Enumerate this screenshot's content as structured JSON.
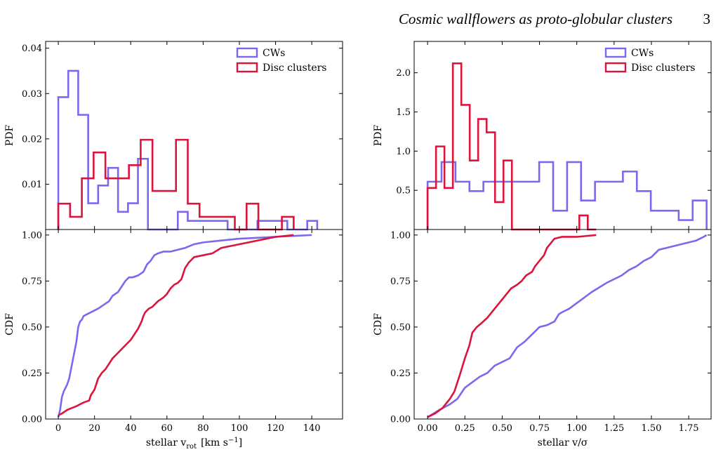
{
  "header": {
    "title": "Cosmic wallflowers as proto-globular clusters",
    "page_number": "3"
  },
  "colors": {
    "cw": "#7b68ee",
    "disc": "#dc143c"
  },
  "chart_data": [
    {
      "type": "histogram",
      "panel": "top-left",
      "ylabel": "PDF",
      "xlim": [
        -7,
        157
      ],
      "ylim": [
        0,
        0.0415
      ],
      "yticks": [
        0.01,
        0.02,
        0.03,
        0.04
      ],
      "ytick_labels": [
        "0.01",
        "0.02",
        "0.03",
        "0.04"
      ],
      "xticks": [
        0,
        20,
        40,
        60,
        80,
        100,
        120,
        140
      ],
      "legend": {
        "placement": "upper right",
        "entries": [
          "CWs",
          "Disc clusters"
        ]
      },
      "series": [
        {
          "name": "CWs",
          "color": "#7b68ee",
          "edges": [
            0,
            5.5,
            11,
            16.5,
            22,
            27.5,
            33,
            38.5,
            44,
            49.5,
            55,
            60.5,
            66,
            71.5,
            77,
            82.5,
            88,
            93.5,
            99,
            104.5,
            110,
            115.5,
            121,
            126.5,
            132,
            137.5,
            143
          ],
          "values": [
            0.0292,
            0.035,
            0.0253,
            0.0058,
            0.0097,
            0.0136,
            0.0039,
            0.0058,
            0.0156,
            0,
            0,
            0,
            0.0039,
            0.0019,
            0.0019,
            0.0019,
            0.0019,
            0,
            0,
            0,
            0.0019,
            0.0019,
            0.0019,
            0,
            0,
            0.0019
          ]
        },
        {
          "name": "Disc clusters",
          "color": "#dc143c",
          "edges": [
            0,
            6.5,
            13,
            19.5,
            26,
            32.5,
            39,
            45.5,
            52,
            58.5,
            65,
            71.5,
            78,
            84.5,
            91,
            97.5,
            104,
            110.5,
            117,
            123.5,
            130
          ],
          "values": [
            0.0057,
            0.0028,
            0.0113,
            0.017,
            0.0113,
            0.0113,
            0.0142,
            0.0198,
            0.0085,
            0.0085,
            0.0198,
            0.0057,
            0.0028,
            0.0028,
            0.0028,
            0,
            0.0057,
            0,
            0,
            0.0028
          ]
        }
      ]
    },
    {
      "type": "histogram",
      "panel": "top-right",
      "ylabel": "PDF",
      "xlim": [
        -0.09,
        1.9
      ],
      "ylim": [
        0,
        2.4
      ],
      "yticks": [
        0.5,
        1.0,
        1.5,
        2.0
      ],
      "ytick_labels": [
        "0.5",
        "1.0",
        "1.5",
        "2.0"
      ],
      "xticks": [
        0.0,
        0.25,
        0.5,
        0.75,
        1.0,
        1.25,
        1.5,
        1.75
      ],
      "legend": {
        "placement": "upper right",
        "entries": [
          "CWs",
          "Disc clusters"
        ]
      },
      "series": [
        {
          "name": "CWs",
          "color": "#7b68ee",
          "edges": [
            0,
            0.0935,
            0.187,
            0.2805,
            0.374,
            0.4675,
            0.561,
            0.6545,
            0.748,
            0.8415,
            0.935,
            1.0285,
            1.122,
            1.2155,
            1.309,
            1.4025,
            1.496,
            1.5895,
            1.683,
            1.7765,
            1.87
          ],
          "values": [
            0.61,
            0.86,
            0.61,
            0.49,
            0.61,
            0.61,
            0.61,
            0.61,
            0.86,
            0.24,
            0.86,
            0.37,
            0.61,
            0.61,
            0.74,
            0.49,
            0.24,
            0.24,
            0.12,
            0.37
          ]
        },
        {
          "name": "Disc clusters",
          "color": "#dc143c",
          "edges": [
            0,
            0.0565,
            0.113,
            0.1695,
            0.226,
            0.2825,
            0.339,
            0.3955,
            0.452,
            0.5085,
            0.565,
            0.6215,
            0.678,
            0.7345,
            0.791,
            0.8475,
            0.904,
            0.9605,
            1.017,
            1.0735,
            1.13
          ],
          "values": [
            0.53,
            1.06,
            0.53,
            2.12,
            1.59,
            0.88,
            1.41,
            1.24,
            0.35,
            0.88,
            0,
            0,
            0,
            0,
            0,
            0,
            0,
            0,
            0.18,
            0
          ]
        }
      ]
    },
    {
      "type": "line",
      "panel": "bottom-left",
      "xlabel": "stellar v",
      "xlabel_sub": "rot",
      "xlabel_unit": "[km s",
      "xlabel_exp": "−1",
      "xlabel_close": "]",
      "ylabel": "CDF",
      "xlim": [
        -7,
        157
      ],
      "ylim": [
        0,
        1.03
      ],
      "xticks": [
        0,
        20,
        40,
        60,
        80,
        100,
        120,
        140
      ],
      "xtick_labels": [
        "0",
        "20",
        "40",
        "60",
        "80",
        "100",
        "120",
        "140"
      ],
      "yticks": [
        0,
        0.25,
        0.5,
        0.75,
        1.0
      ],
      "ytick_labels": [
        "0.00",
        "0.25",
        "0.50",
        "0.75",
        "1.00"
      ],
      "series": [
        {
          "name": "CWs",
          "color": "#7b68ee",
          "x": [
            0,
            1,
            2,
            3,
            4,
            5,
            6,
            7,
            8,
            9,
            10,
            11,
            12,
            13,
            14,
            16,
            18,
            20,
            22,
            25,
            28,
            30,
            33,
            35,
            37,
            39,
            41,
            44,
            47,
            49,
            51,
            53,
            55,
            58,
            62,
            66,
            70,
            75,
            80,
            90,
            100,
            120,
            140
          ],
          "y": [
            0.01,
            0.05,
            0.12,
            0.15,
            0.17,
            0.19,
            0.22,
            0.27,
            0.32,
            0.37,
            0.42,
            0.5,
            0.53,
            0.54,
            0.56,
            0.57,
            0.58,
            0.59,
            0.6,
            0.62,
            0.64,
            0.67,
            0.69,
            0.72,
            0.75,
            0.77,
            0.77,
            0.78,
            0.8,
            0.84,
            0.86,
            0.89,
            0.9,
            0.91,
            0.91,
            0.92,
            0.93,
            0.95,
            0.96,
            0.97,
            0.98,
            0.99,
            1.0
          ]
        },
        {
          "name": "Disc clusters",
          "color": "#dc143c",
          "x": [
            0,
            2,
            5,
            10,
            14,
            17,
            18,
            20,
            22,
            24,
            26,
            28,
            30,
            32,
            34,
            36,
            38,
            40,
            42,
            44,
            46,
            47,
            48,
            50,
            52,
            55,
            58,
            60,
            62,
            64,
            66,
            68,
            69,
            70,
            72,
            75,
            80,
            85,
            90,
            100,
            110,
            120,
            130
          ],
          "y": [
            0.02,
            0.03,
            0.05,
            0.07,
            0.09,
            0.1,
            0.13,
            0.16,
            0.22,
            0.25,
            0.27,
            0.3,
            0.33,
            0.35,
            0.37,
            0.39,
            0.41,
            0.43,
            0.46,
            0.49,
            0.53,
            0.56,
            0.58,
            0.6,
            0.61,
            0.64,
            0.66,
            0.68,
            0.71,
            0.73,
            0.74,
            0.76,
            0.79,
            0.82,
            0.85,
            0.88,
            0.89,
            0.9,
            0.93,
            0.95,
            0.97,
            0.99,
            1.0
          ]
        }
      ]
    },
    {
      "type": "line",
      "panel": "bottom-right",
      "xlabel": "stellar v/σ",
      "ylabel": "CDF",
      "xlim": [
        -0.09,
        1.9
      ],
      "ylim": [
        0,
        1.03
      ],
      "xticks": [
        0.0,
        0.25,
        0.5,
        0.75,
        1.0,
        1.25,
        1.5,
        1.75
      ],
      "xtick_labels": [
        "0.00",
        "0.25",
        "0.50",
        "0.75",
        "1.00",
        "1.25",
        "1.50",
        "1.75"
      ],
      "yticks": [
        0,
        0.25,
        0.5,
        0.75,
        1.0
      ],
      "ytick_labels": [
        "0.00",
        "0.25",
        "0.50",
        "0.75",
        "1.00"
      ],
      "series": [
        {
          "name": "CWs",
          "color": "#7b68ee",
          "x": [
            0,
            0.08,
            0.15,
            0.2,
            0.25,
            0.3,
            0.35,
            0.4,
            0.45,
            0.5,
            0.55,
            0.6,
            0.65,
            0.7,
            0.75,
            0.8,
            0.85,
            0.88,
            0.9,
            0.95,
            1.0,
            1.05,
            1.1,
            1.2,
            1.3,
            1.35,
            1.4,
            1.45,
            1.5,
            1.55,
            1.6,
            1.7,
            1.75,
            1.8,
            1.85,
            1.87
          ],
          "y": [
            0.01,
            0.05,
            0.08,
            0.11,
            0.17,
            0.2,
            0.23,
            0.25,
            0.29,
            0.31,
            0.33,
            0.39,
            0.42,
            0.46,
            0.5,
            0.51,
            0.53,
            0.57,
            0.58,
            0.6,
            0.63,
            0.66,
            0.69,
            0.74,
            0.78,
            0.81,
            0.83,
            0.86,
            0.88,
            0.92,
            0.93,
            0.95,
            0.96,
            0.97,
            0.99,
            1.0
          ]
        },
        {
          "name": "Disc clusters",
          "color": "#dc143c",
          "x": [
            0,
            0.05,
            0.1,
            0.12,
            0.15,
            0.18,
            0.2,
            0.22,
            0.25,
            0.28,
            0.3,
            0.33,
            0.36,
            0.4,
            0.43,
            0.46,
            0.5,
            0.53,
            0.56,
            0.6,
            0.63,
            0.66,
            0.7,
            0.72,
            0.75,
            0.78,
            0.8,
            0.85,
            0.9,
            1.0,
            1.13
          ],
          "y": [
            0.01,
            0.03,
            0.06,
            0.08,
            0.11,
            0.15,
            0.2,
            0.25,
            0.33,
            0.4,
            0.47,
            0.5,
            0.52,
            0.55,
            0.58,
            0.61,
            0.65,
            0.68,
            0.71,
            0.73,
            0.75,
            0.78,
            0.8,
            0.83,
            0.86,
            0.89,
            0.93,
            0.98,
            0.99,
            0.99,
            1.0
          ]
        }
      ]
    }
  ]
}
